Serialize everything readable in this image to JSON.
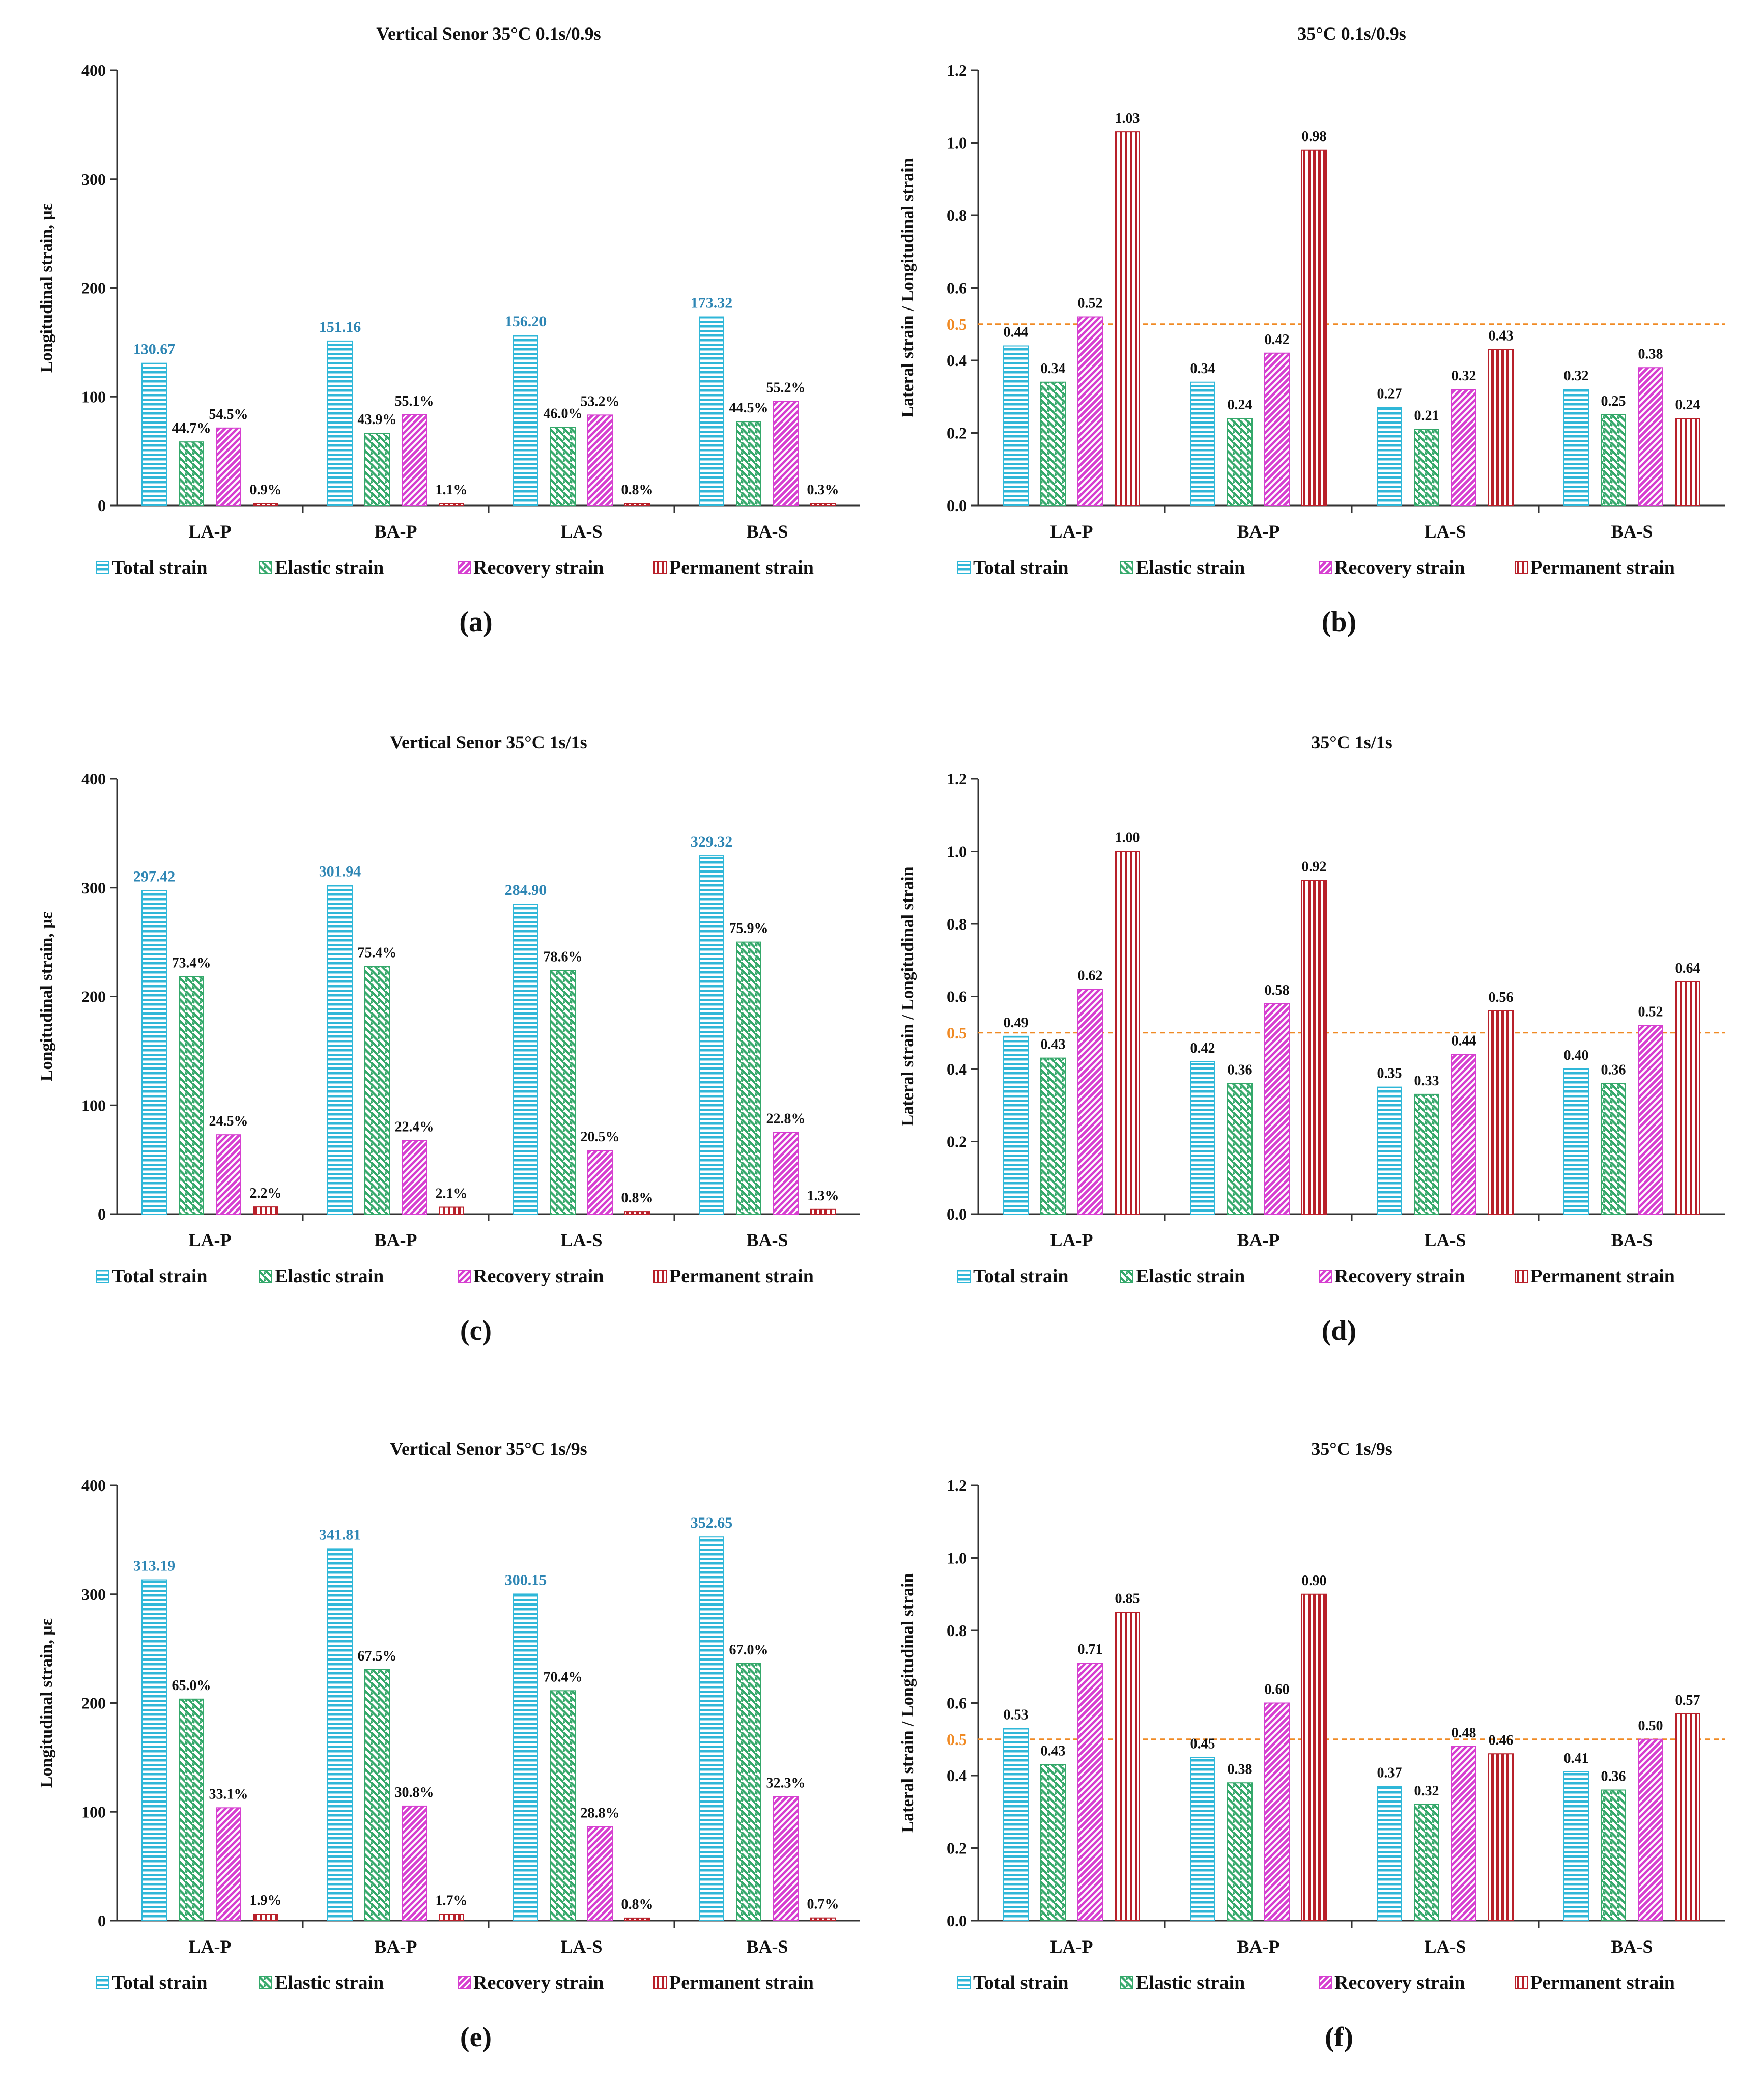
{
  "colors": {
    "total": "#2fb7d8",
    "elastic": "#34a86a",
    "recovery": "#d63fd0",
    "permanent": "#b8202a",
    "total_label": "#2e86b4",
    "reference_line": "#f08a24",
    "axis": "#333333"
  },
  "legend_labels": [
    "Total strain",
    "Elastic strain",
    "Recovery strain",
    "Permanent strain"
  ],
  "series_keys": [
    "total",
    "elastic",
    "recovery",
    "permanent"
  ],
  "chart_data": [
    {
      "panel": "(a)",
      "type": "bar",
      "title": "Vertical Senor  35°C 0.1s/0.9s",
      "ylabel": "Longitudinal strain, με",
      "xlabel": "",
      "categories": [
        "LA-P",
        "BA-P",
        "LA-S",
        "BA-S"
      ],
      "ylim": [
        0,
        400
      ],
      "yticks": [
        "0",
        "100",
        "200",
        "300",
        "400"
      ],
      "series": [
        {
          "name": "Total strain",
          "values": [
            130.67,
            151.16,
            156.2,
            173.32
          ],
          "labels": [
            "130.67",
            "151.16",
            "156.20",
            "173.32"
          ]
        },
        {
          "name": "Elastic strain",
          "values": [
            58.4,
            66.4,
            71.9,
            77.1
          ],
          "labels": [
            "44.7%",
            "43.9%",
            "46.0%",
            "44.5%"
          ]
        },
        {
          "name": "Recovery strain",
          "values": [
            71.2,
            83.3,
            83.1,
            95.7
          ],
          "labels": [
            "54.5%",
            "55.1%",
            "53.2%",
            "55.2%"
          ]
        },
        {
          "name": "Permanent strain",
          "values": [
            1.2,
            1.7,
            1.2,
            0.5
          ],
          "labels": [
            "0.9%",
            "1.1%",
            "0.8%",
            "0.3%"
          ]
        }
      ]
    },
    {
      "panel": "(b)",
      "type": "bar",
      "title": "35°C 0.1s/0.9s",
      "ylabel": "Lateral strain / Longitudinal strain",
      "xlabel": "",
      "categories": [
        "LA-P",
        "BA-P",
        "LA-S",
        "BA-S"
      ],
      "ylim": [
        0,
        1.2
      ],
      "yticks": [
        "0.0",
        "0.2",
        "0.4",
        "0.6",
        "0.8",
        "1.0",
        "1.2"
      ],
      "reference_line": {
        "value": 0.5,
        "label": "0.5"
      },
      "series": [
        {
          "name": "Total strain",
          "values": [
            0.44,
            0.34,
            0.27,
            0.32
          ],
          "labels": [
            "0.44",
            "0.34",
            "0.27",
            "0.32"
          ]
        },
        {
          "name": "Elastic strain",
          "values": [
            0.34,
            0.24,
            0.21,
            0.25
          ],
          "labels": [
            "0.34",
            "0.24",
            "0.21",
            "0.25"
          ]
        },
        {
          "name": "Recovery strain",
          "values": [
            0.52,
            0.42,
            0.32,
            0.38
          ],
          "labels": [
            "0.52",
            "0.42",
            "0.32",
            "0.38"
          ]
        },
        {
          "name": "Permanent strain",
          "values": [
            1.03,
            0.98,
            0.43,
            0.24
          ],
          "labels": [
            "1.03",
            "0.98",
            "0.43",
            "0.24"
          ]
        }
      ]
    },
    {
      "panel": "(c)",
      "type": "bar",
      "title": "Vertical Senor  35°C 1s/1s",
      "ylabel": "Longitudinal strain, με",
      "xlabel": "",
      "categories": [
        "LA-P",
        "BA-P",
        "LA-S",
        "BA-S"
      ],
      "ylim": [
        0,
        400
      ],
      "yticks": [
        "0",
        "100",
        "200",
        "300",
        "400"
      ],
      "series": [
        {
          "name": "Total strain",
          "values": [
            297.42,
            301.94,
            284.9,
            329.32
          ],
          "labels": [
            "297.42",
            "301.94",
            "284.90",
            "329.32"
          ]
        },
        {
          "name": "Elastic strain",
          "values": [
            218.3,
            227.7,
            223.9,
            250.0
          ],
          "labels": [
            "73.4%",
            "75.4%",
            "78.6%",
            "75.9%"
          ]
        },
        {
          "name": "Recovery strain",
          "values": [
            72.9,
            67.6,
            58.4,
            75.1
          ],
          "labels": [
            "24.5%",
            "22.4%",
            "20.5%",
            "22.8%"
          ]
        },
        {
          "name": "Permanent strain",
          "values": [
            6.5,
            6.3,
            2.3,
            4.3
          ],
          "labels": [
            "2.2%",
            "2.1%",
            "0.8%",
            "1.3%"
          ]
        }
      ]
    },
    {
      "panel": "(d)",
      "type": "bar",
      "title": "35°C 1s/1s",
      "ylabel": "Lateral strain / Longitudinal strain",
      "xlabel": "",
      "categories": [
        "LA-P",
        "BA-P",
        "LA-S",
        "BA-S"
      ],
      "ylim": [
        0,
        1.2
      ],
      "yticks": [
        "0.0",
        "0.2",
        "0.4",
        "0.6",
        "0.8",
        "1.0",
        "1.2"
      ],
      "reference_line": {
        "value": 0.5,
        "label": "0.5"
      },
      "series": [
        {
          "name": "Total strain",
          "values": [
            0.49,
            0.42,
            0.35,
            0.4
          ],
          "labels": [
            "0.49",
            "0.42",
            "0.35",
            "0.40"
          ]
        },
        {
          "name": "Elastic strain",
          "values": [
            0.43,
            0.36,
            0.33,
            0.36
          ],
          "labels": [
            "0.43",
            "0.36",
            "0.33",
            "0.36"
          ]
        },
        {
          "name": "Recovery strain",
          "values": [
            0.62,
            0.58,
            0.44,
            0.52
          ],
          "labels": [
            "0.62",
            "0.58",
            "0.44",
            "0.52"
          ]
        },
        {
          "name": "Permanent strain",
          "values": [
            1.0,
            0.92,
            0.56,
            0.64
          ],
          "labels": [
            "1.00",
            "0.92",
            "0.56",
            "0.64"
          ]
        }
      ]
    },
    {
      "panel": "(e)",
      "type": "bar",
      "title": "Vertical Senor  35°C 1s/9s",
      "ylabel": "Longitudinal strain, με",
      "xlabel": "",
      "categories": [
        "LA-P",
        "BA-P",
        "LA-S",
        "BA-S"
      ],
      "ylim": [
        0,
        400
      ],
      "yticks": [
        "0",
        "100",
        "200",
        "300",
        "400"
      ],
      "series": [
        {
          "name": "Total strain",
          "values": [
            313.19,
            341.81,
            300.15,
            352.65
          ],
          "labels": [
            "313.19",
            "341.81",
            "300.15",
            "352.65"
          ]
        },
        {
          "name": "Elastic strain",
          "values": [
            203.6,
            230.7,
            211.3,
            236.3
          ],
          "labels": [
            "65.0%",
            "67.5%",
            "70.4%",
            "67.0%"
          ]
        },
        {
          "name": "Recovery strain",
          "values": [
            103.7,
            105.3,
            86.4,
            113.9
          ],
          "labels": [
            "33.1%",
            "30.8%",
            "28.8%",
            "32.3%"
          ]
        },
        {
          "name": "Permanent strain",
          "values": [
            6.0,
            5.8,
            2.4,
            2.5
          ],
          "labels": [
            "1.9%",
            "1.7%",
            "0.8%",
            "0.7%"
          ]
        }
      ]
    },
    {
      "panel": "(f)",
      "type": "bar",
      "title": "35°C 1s/9s",
      "ylabel": "Lateral strain / Longitudinal strain",
      "xlabel": "",
      "categories": [
        "LA-P",
        "BA-P",
        "LA-S",
        "BA-S"
      ],
      "ylim": [
        0,
        1.2
      ],
      "yticks": [
        "0.0",
        "0.2",
        "0.4",
        "0.6",
        "0.8",
        "1.0",
        "1.2"
      ],
      "reference_line": {
        "value": 0.5,
        "label": "0.5"
      },
      "series": [
        {
          "name": "Total strain",
          "values": [
            0.53,
            0.45,
            0.37,
            0.41
          ],
          "labels": [
            "0.53",
            "0.45",
            "0.37",
            "0.41"
          ]
        },
        {
          "name": "Elastic strain",
          "values": [
            0.43,
            0.38,
            0.32,
            0.36
          ],
          "labels": [
            "0.43",
            "0.38",
            "0.32",
            "0.36"
          ]
        },
        {
          "name": "Recovery strain",
          "values": [
            0.71,
            0.6,
            0.48,
            0.5
          ],
          "labels": [
            "0.71",
            "0.60",
            "0.48",
            "0.50"
          ]
        },
        {
          "name": "Permanent strain",
          "values": [
            0.85,
            0.9,
            0.46,
            0.57
          ],
          "labels": [
            "0.85",
            "0.90",
            "0.46",
            "0.57"
          ]
        }
      ]
    }
  ]
}
